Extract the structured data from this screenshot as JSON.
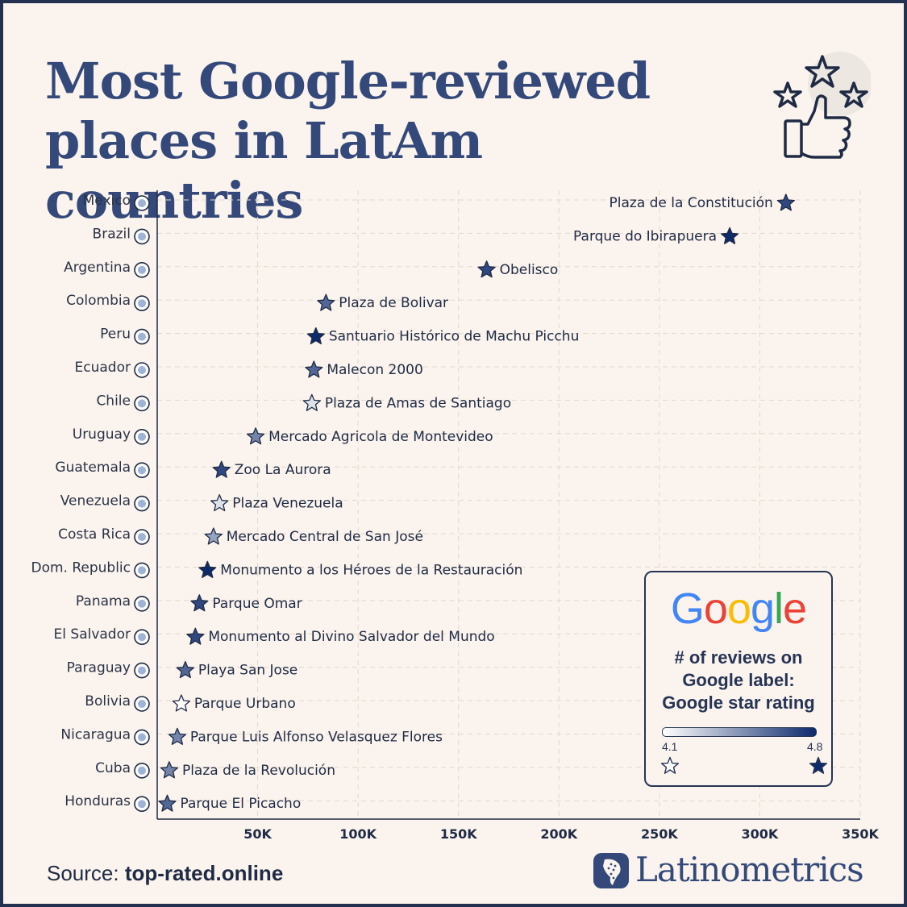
{
  "title": {
    "line1": "Most Google-reviewed",
    "line2": "places in LatAm countries"
  },
  "colors": {
    "rating_min": "#ffffff",
    "rating_max": "#0d2a6b",
    "title": "#34497a",
    "background": "#fbf4ee"
  },
  "icons": {
    "badge": "thumbs-up-with-stars-icon",
    "brand": "latam-map-logo-icon"
  },
  "chart_data": {
    "type": "scatter",
    "title": "Most Google-reviewed places in LatAm countries",
    "xlim": [
      0,
      350000
    ],
    "xticks": [
      50000,
      100000,
      150000,
      200000,
      250000,
      300000,
      350000
    ],
    "xtick_labels": [
      "50K",
      "100K",
      "150K",
      "200K",
      "250K",
      "300K",
      "350K"
    ],
    "grid": true,
    "color_scale": {
      "min": 4.1,
      "max": 4.8
    },
    "points": [
      {
        "country": "Mexico",
        "place": "Plaza de la Constitución",
        "reviews": 313000,
        "rating": 4.7
      },
      {
        "country": "Brazil",
        "place": "Parque do Ibirapuera",
        "reviews": 285000,
        "rating": 4.8
      },
      {
        "country": "Argentina",
        "place": "Obelisco",
        "reviews": 164000,
        "rating": 4.7
      },
      {
        "country": "Colombia",
        "place": "Plaza de Bolivar",
        "reviews": 84000,
        "rating": 4.6
      },
      {
        "country": "Peru",
        "place": "Santuario Histórico de Machu Picchu",
        "reviews": 79000,
        "rating": 4.8
      },
      {
        "country": "Ecuador",
        "place": "Malecon 2000",
        "reviews": 78000,
        "rating": 4.6
      },
      {
        "country": "Chile",
        "place": "Plaza de Amas de Santiago",
        "reviews": 77000,
        "rating": 4.2
      },
      {
        "country": "Uruguay",
        "place": "Mercado Agricola de Montevideo",
        "reviews": 49000,
        "rating": 4.5
      },
      {
        "country": "Guatemala",
        "place": "Zoo La Aurora",
        "reviews": 32000,
        "rating": 4.7
      },
      {
        "country": "Venezuela",
        "place": "Plaza Venezuela",
        "reviews": 31000,
        "rating": 4.2
      },
      {
        "country": "Costa Rica",
        "place": "Mercado Central de San José",
        "reviews": 28000,
        "rating": 4.4
      },
      {
        "country": "Dom. Republic",
        "place": "Monumento a los Héroes de la Restauración",
        "reviews": 25000,
        "rating": 4.8
      },
      {
        "country": "Panama",
        "place": "Parque Omar",
        "reviews": 21000,
        "rating": 4.7
      },
      {
        "country": "El Salvador",
        "place": "Monumento al Divino Salvador del Mundo",
        "reviews": 19000,
        "rating": 4.7
      },
      {
        "country": "Paraguay",
        "place": "Playa San Jose",
        "reviews": 14000,
        "rating": 4.6
      },
      {
        "country": "Bolivia",
        "place": "Parque Urbano",
        "reviews": 12000,
        "rating": 4.1
      },
      {
        "country": "Nicaragua",
        "place": "Parque Luis Alfonso Velasquez Flores",
        "reviews": 10000,
        "rating": 4.5
      },
      {
        "country": "Cuba",
        "place": "Plaza de la Revolución",
        "reviews": 6000,
        "rating": 4.5
      },
      {
        "country": "Honduras",
        "place": "Parque El Picacho",
        "reviews": 5000,
        "rating": 4.6
      }
    ]
  },
  "legend": {
    "logo": "Google",
    "logo_colors": [
      "#4285F4",
      "#EA4335",
      "#FBBC05",
      "#4285F4",
      "#34A853",
      "#EA4335"
    ],
    "line1": "# of reviews on",
    "line2": "Google label:",
    "line3": "Google star rating",
    "min_label": "4.1",
    "max_label": "4.8"
  },
  "footer": {
    "source_prefix": "Source:",
    "source_value": "top-rated.online",
    "brand": "Latinometrics"
  }
}
